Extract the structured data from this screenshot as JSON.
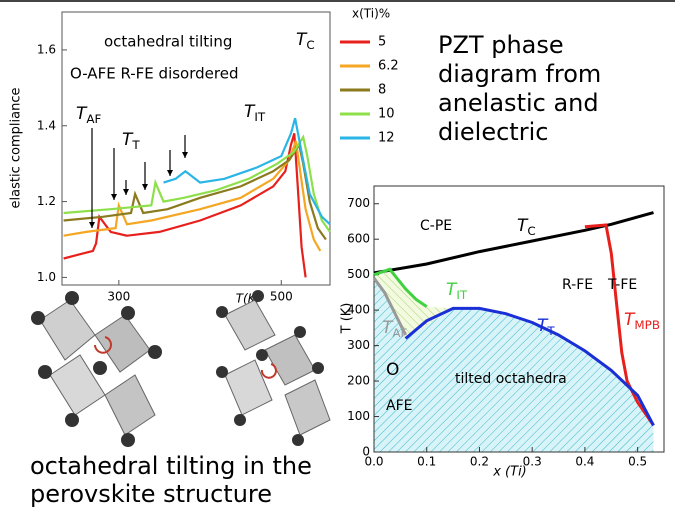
{
  "chart_data": [
    {
      "type": "line",
      "y_label": "elastic compliance",
      "x_label": "T(K)",
      "xlim": [
        230,
        560
      ],
      "ylim": [
        0.98,
        1.7
      ],
      "xticks": [
        300,
        500
      ],
      "yticks": [
        {
          "value": 1.0,
          "label": "1.0"
        },
        1.2,
        1.4,
        1.6
      ],
      "legend_title": "x(Ti)%",
      "annotations": [
        "octahedral tilting",
        "O-AFE  R-FE  disordered"
      ],
      "labels": [
        {
          "text": "T",
          "sub": "AF"
        },
        {
          "text": "T",
          "sub": "T"
        },
        {
          "text": "T",
          "sub": "IT"
        },
        {
          "text": "T",
          "sub": "C"
        }
      ],
      "series": [
        {
          "name": "5",
          "color": "#e8201c",
          "x": [
            232,
            250,
            268,
            272,
            276,
            290,
            310,
            350,
            400,
            450,
            490,
            505,
            512,
            516,
            520,
            525,
            530
          ],
          "values": [
            1.05,
            1.06,
            1.07,
            1.09,
            1.16,
            1.12,
            1.11,
            1.12,
            1.15,
            1.19,
            1.24,
            1.28,
            1.35,
            1.38,
            1.25,
            1.08,
            1.0
          ]
        },
        {
          "name": "6.2",
          "color": "#f5a623",
          "x": [
            232,
            260,
            296,
            300,
            310,
            340,
            400,
            450,
            490,
            510,
            518,
            522,
            530,
            540,
            548
          ],
          "values": [
            1.11,
            1.12,
            1.13,
            1.19,
            1.14,
            1.15,
            1.18,
            1.21,
            1.26,
            1.31,
            1.36,
            1.3,
            1.18,
            1.1,
            1.07
          ]
        },
        {
          "name": "8",
          "color": "#8b7a1e",
          "x": [
            232,
            280,
            315,
            320,
            330,
            360,
            400,
            450,
            490,
            510,
            522,
            527,
            535,
            545,
            555
          ],
          "values": [
            1.15,
            1.16,
            1.17,
            1.22,
            1.17,
            1.18,
            1.21,
            1.24,
            1.28,
            1.31,
            1.35,
            1.3,
            1.2,
            1.13,
            1.1
          ]
        },
        {
          "name": "10",
          "color": "#8ee04a",
          "x": [
            232,
            290,
            340,
            345,
            355,
            380,
            420,
            460,
            495,
            515,
            527,
            532,
            540,
            550,
            560
          ],
          "values": [
            1.17,
            1.18,
            1.19,
            1.25,
            1.2,
            1.21,
            1.23,
            1.26,
            1.3,
            1.33,
            1.37,
            1.32,
            1.22,
            1.15,
            1.12
          ]
        },
        {
          "name": "12",
          "color": "#2ab5e6",
          "x": [
            355,
            370,
            382,
            388,
            400,
            430,
            470,
            500,
            512,
            517,
            525,
            535,
            550,
            560
          ],
          "values": [
            1.25,
            1.26,
            1.28,
            1.27,
            1.25,
            1.26,
            1.29,
            1.32,
            1.38,
            1.42,
            1.33,
            1.22,
            1.16,
            1.14
          ]
        }
      ]
    },
    {
      "type": "phase",
      "x_label": "x (Ti)",
      "y_label": "T (K)",
      "xlim": [
        0,
        0.55
      ],
      "ylim": [
        0,
        750
      ],
      "xticks": [
        {
          "value": 0,
          "label": "0.0"
        },
        0.1,
        0.2,
        0.3,
        0.4,
        0.5
      ],
      "yticks": [
        0,
        100,
        200,
        300,
        400,
        500,
        600,
        700
      ],
      "regions": [
        "C-PE",
        "R-FE",
        "T-FE",
        "tilted octahedra",
        "O",
        "AFE"
      ],
      "series": [
        {
          "name": "T",
          "sub": "C",
          "color": "#000000",
          "x": [
            0,
            0.1,
            0.2,
            0.3,
            0.4,
            0.45,
            0.53
          ],
          "values": [
            505,
            530,
            565,
            595,
            625,
            642,
            675
          ]
        },
        {
          "name": "T",
          "sub": "MPB",
          "color": "#e8201c",
          "x": [
            0.4,
            0.44,
            0.45,
            0.46,
            0.47,
            0.48,
            0.5,
            0.53
          ],
          "values": [
            635,
            640,
            560,
            420,
            280,
            200,
            140,
            75
          ]
        },
        {
          "name": "T",
          "sub": "T",
          "color": "#1a2fd6",
          "x": [
            0.06,
            0.1,
            0.15,
            0.2,
            0.25,
            0.3,
            0.35,
            0.4,
            0.45,
            0.5,
            0.53
          ],
          "values": [
            320,
            370,
            405,
            405,
            390,
            365,
            330,
            285,
            230,
            160,
            75
          ]
        },
        {
          "name": "T",
          "sub": "IT",
          "color": "#3fd13f",
          "x": [
            0,
            0.03,
            0.06,
            0.08,
            0.1
          ],
          "values": [
            500,
            515,
            460,
            430,
            410
          ]
        },
        {
          "name": "T",
          "sub": "AF",
          "color": "#999999",
          "x": [
            0,
            0.02,
            0.04,
            0.06
          ],
          "values": [
            490,
            450,
            390,
            330
          ]
        }
      ]
    }
  ],
  "side_text": [
    "PZT phase",
    "diagram from",
    "anelastic and",
    "dielectric"
  ],
  "caption": [
    "octahedral tilting in the",
    "perovskite structure"
  ]
}
